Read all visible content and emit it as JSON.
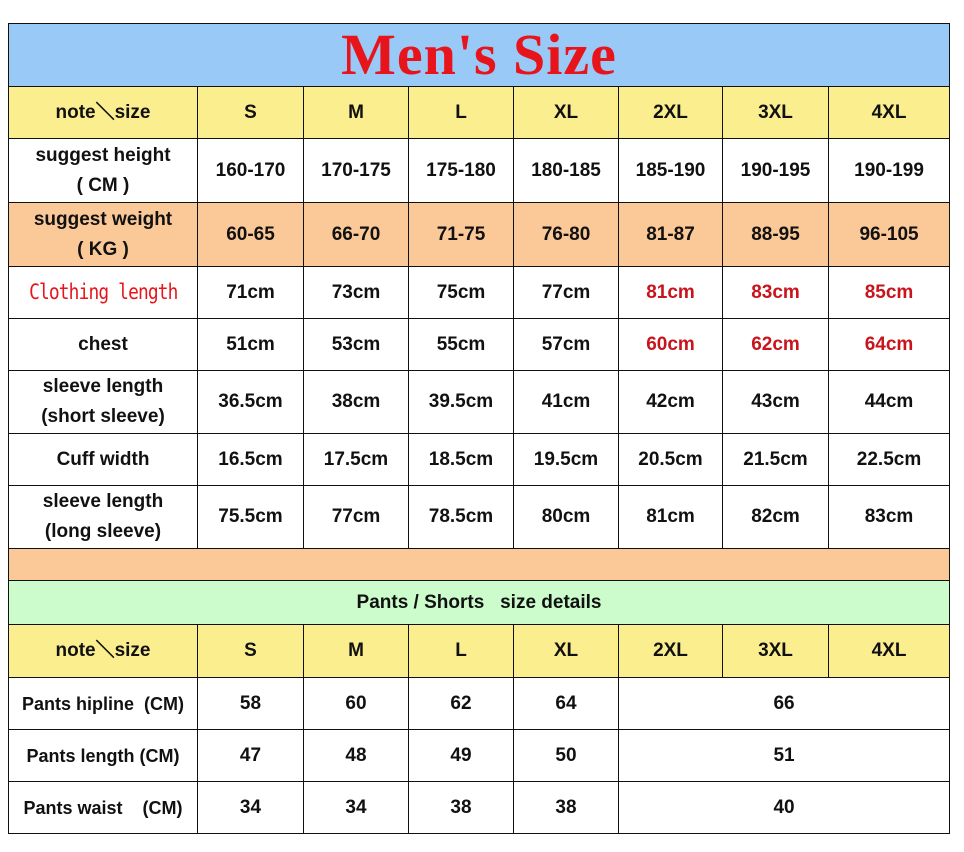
{
  "title": "Men's Size",
  "shirt": {
    "header": [
      "note＼size",
      "S",
      "M",
      "L",
      "XL",
      "2XL",
      "3XL",
      "4XL"
    ],
    "rows": [
      {
        "label1": "suggest height",
        "label2": "( CM )",
        "values": [
          "160-170",
          "170-175",
          "175-180",
          "180-185",
          "185-190",
          "190-195",
          "190-199"
        ]
      },
      {
        "label1": "suggest weight",
        "label2": "( KG )",
        "values": [
          "60-65",
          "66-70",
          "71-75",
          "76-80",
          "81-87",
          "88-95",
          "96-105"
        ]
      },
      {
        "label1": "Clothing length",
        "values": [
          "71cm",
          "73cm",
          "75cm",
          "77cm",
          "81cm",
          "83cm",
          "85cm"
        ]
      },
      {
        "label1": "chest",
        "values": [
          "51cm",
          "53cm",
          "55cm",
          "57cm",
          "60cm",
          "62cm",
          "64cm"
        ]
      },
      {
        "label1": "sleeve length",
        "label2": "(short sleeve)",
        "values": [
          "36.5cm",
          "38cm",
          "39.5cm",
          "41cm",
          "42cm",
          "43cm",
          "44cm"
        ]
      },
      {
        "label1": "Cuff width",
        "values": [
          "16.5cm",
          "17.5cm",
          "18.5cm",
          "19.5cm",
          "20.5cm",
          "21.5cm",
          "22.5cm"
        ]
      },
      {
        "label1": "sleeve length",
        "label2": "(long sleeve)",
        "values": [
          "75.5cm",
          "77cm",
          "78.5cm",
          "80cm",
          "81cm",
          "82cm",
          "83cm"
        ]
      }
    ]
  },
  "pants": {
    "section_title": "Pants / Shorts   size details",
    "header": [
      "note＼size",
      "S",
      "M",
      "L",
      "XL",
      "2XL",
      "3XL",
      "4XL"
    ],
    "rows": [
      {
        "label": "Pants hipline  (CM)",
        "values": [
          "58",
          "60",
          "62",
          "64",
          "66"
        ]
      },
      {
        "label": "Pants length (CM)",
        "values": [
          "47",
          "48",
          "49",
          "50",
          "51"
        ]
      },
      {
        "label": "Pants waist    (CM)",
        "values": [
          "34",
          "34",
          "38",
          "38",
          "40"
        ]
      }
    ]
  },
  "colors": {
    "title_bg": "#99c9f7",
    "title_text": "#e8141c",
    "header_bg": "#fbee8f",
    "weight_bg": "#fbc898",
    "section_bg": "#ccfccc",
    "highlight_text": "#c8141c"
  }
}
